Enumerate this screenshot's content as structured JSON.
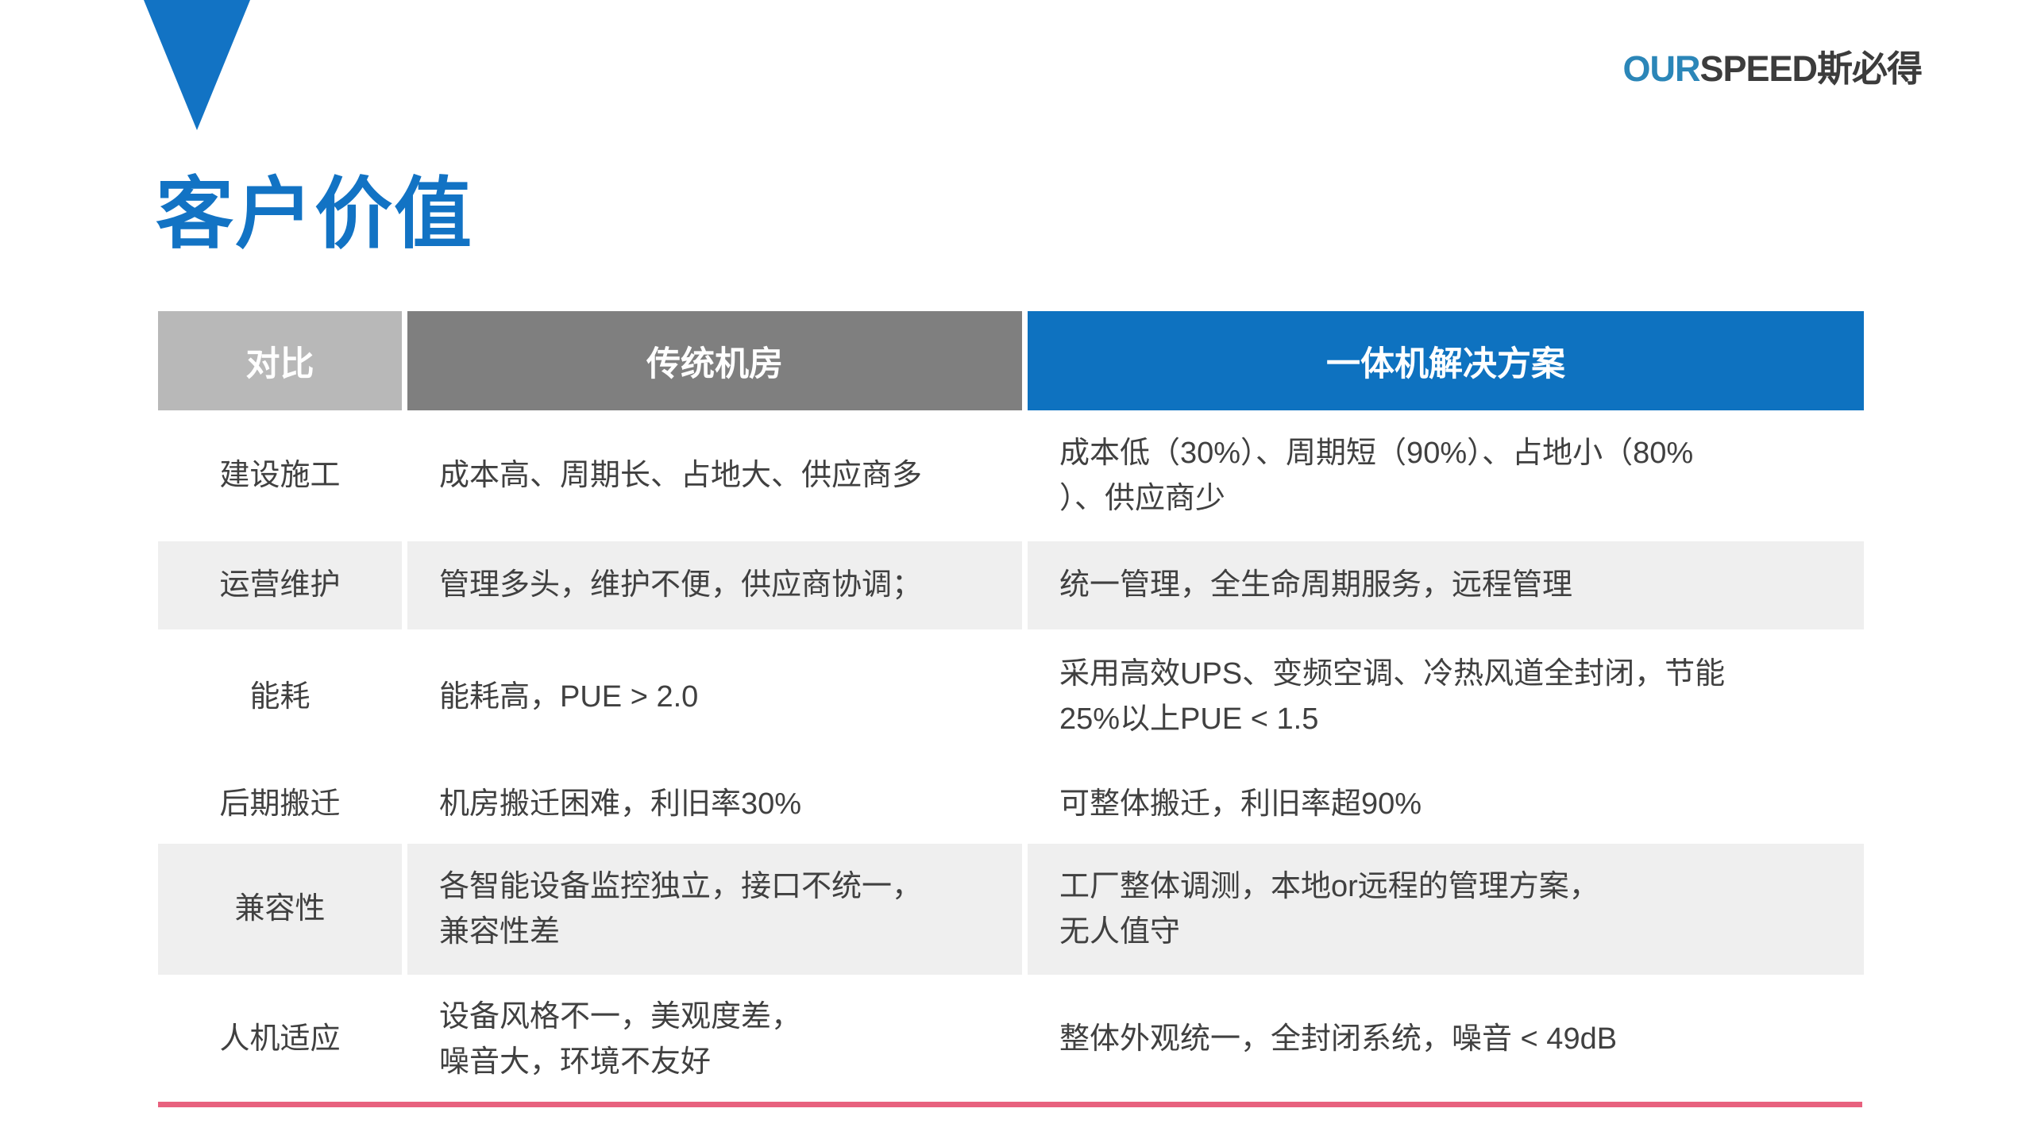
{
  "logo": {
    "prefix": "OUR",
    "suffix": "SPEED斯必得"
  },
  "page_title": "客户价值",
  "colors": {
    "accent_blue": "#1273c4",
    "logo_blue": "#2b86b8",
    "header_gray_light": "#b8b8b8",
    "header_gray_dark": "#7f7f7f",
    "header_blue": "#0e72c0",
    "row_stripe_gray": "#efefef",
    "body_text": "#404040",
    "bottom_line_pink": "#e8617e"
  },
  "table": {
    "headers": {
      "comparison": "对比",
      "traditional": "传统机房",
      "solution": "一体机解决方案"
    },
    "rows": [
      {
        "category": "建设施工",
        "traditional": "成本高、周期长、占地大、供应商多",
        "solution": "成本低（30%）、周期短（90%）、占地小（80%\n）、供应商少"
      },
      {
        "category": "运营维护",
        "traditional": "管理多头，维护不便，供应商协调；",
        "solution": "统一管理，全生命周期服务，远程管理"
      },
      {
        "category": "能耗",
        "traditional": "能耗高，PUE > 2.0",
        "solution": "采用高效UPS、变频空调、冷热风道全封闭，节能\n25%以上PUE < 1.5"
      },
      {
        "category": "后期搬迁",
        "traditional": "机房搬迁困难，利旧率30%",
        "solution": "可整体搬迁，利旧率超90%"
      },
      {
        "category": "兼容性",
        "traditional": "各智能设备监控独立，接口不统一，\n兼容性差",
        "solution": "工厂整体调测，本地or远程的管理方案，\n无人值守"
      },
      {
        "category": "人机适应",
        "traditional": "设备风格不一，美观度差，\n噪音大，环境不友好",
        "solution": "整体外观统一，全封闭系统，噪音 < 49dB"
      }
    ]
  }
}
